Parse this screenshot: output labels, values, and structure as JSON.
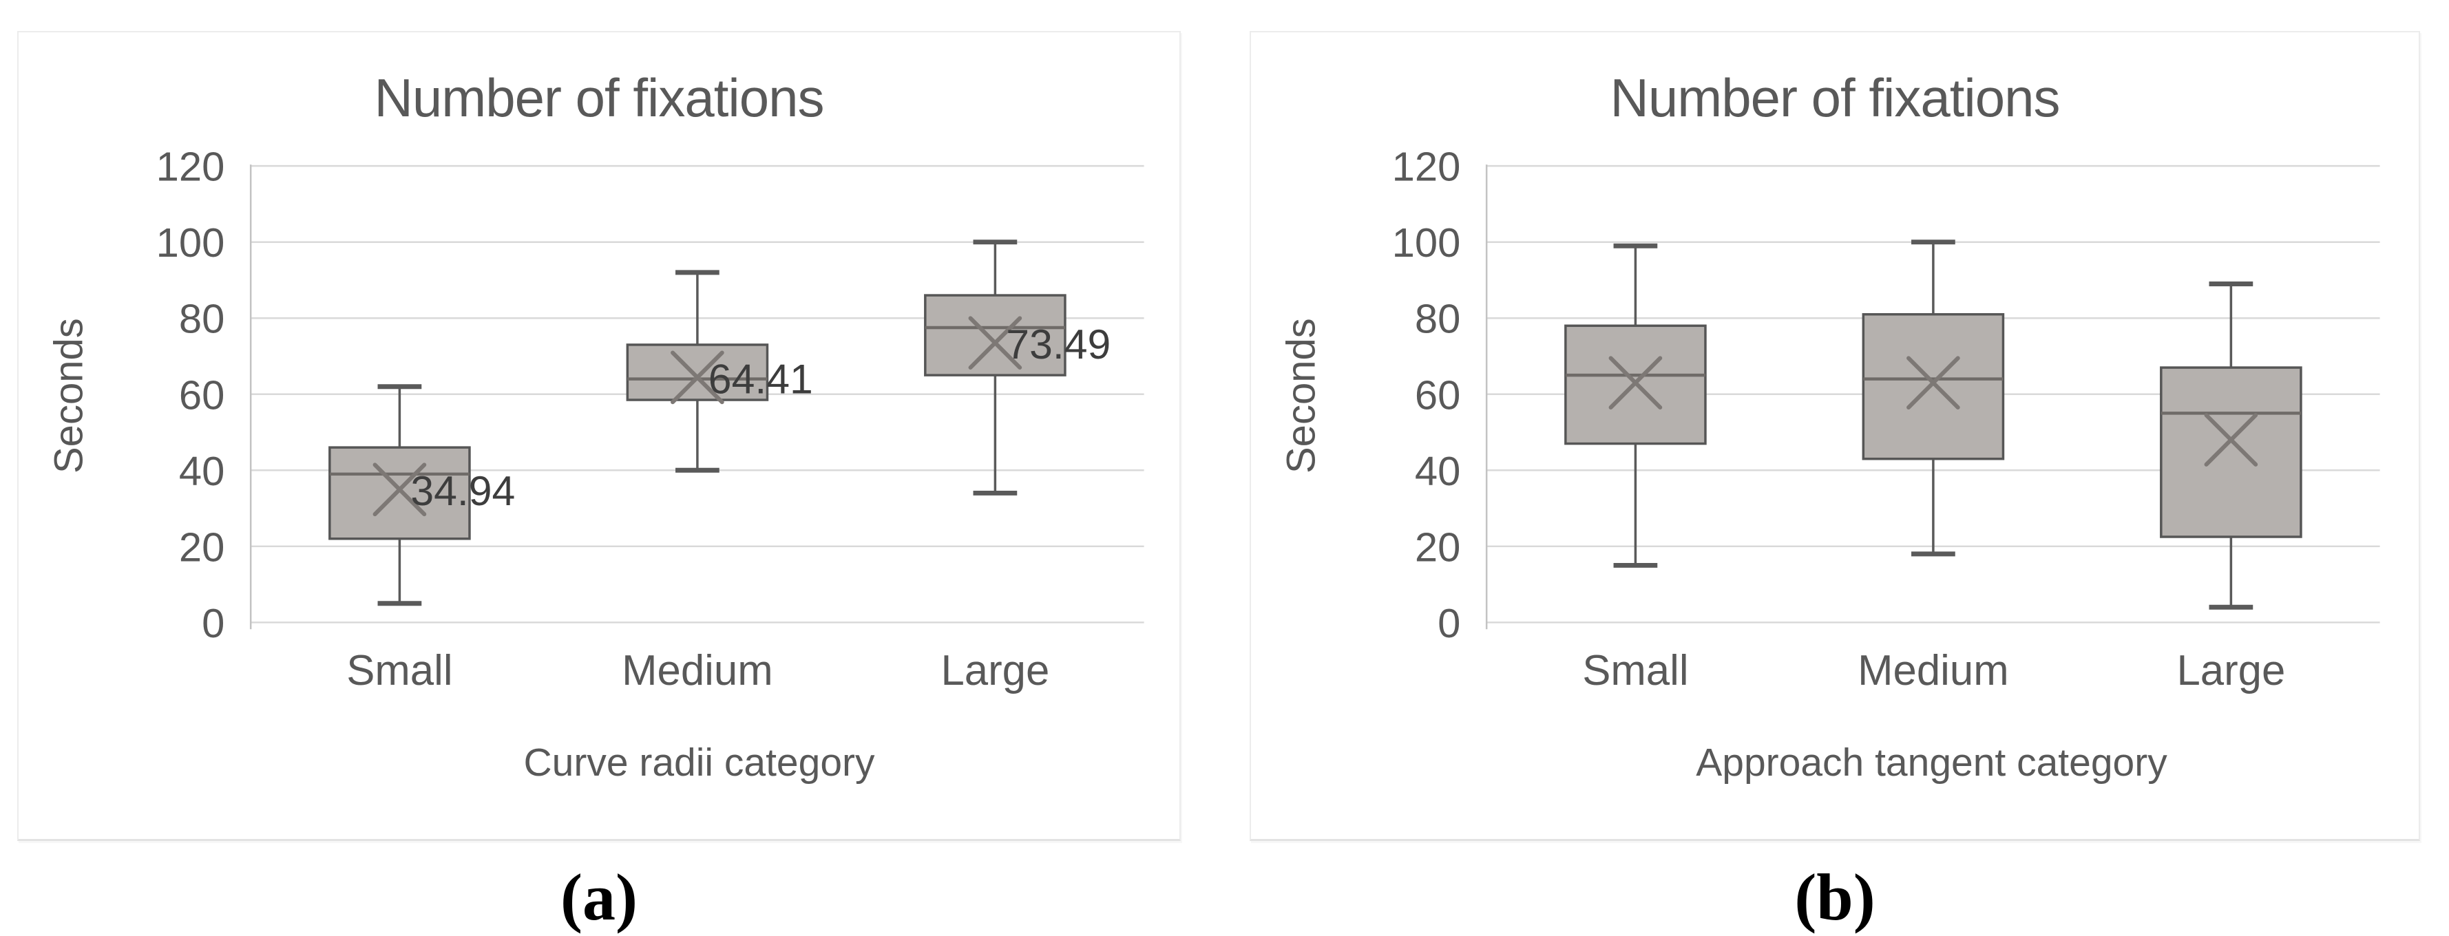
{
  "figure": {
    "background": "#ffffff",
    "captions": {
      "a": "(a)",
      "b": "(b)"
    }
  },
  "colors": {
    "panel_border": "#ececec",
    "gridline": "#d9d9d9",
    "axis_line": "#c3c3c3",
    "tick_text": "#595959",
    "category_text": "#595959",
    "title_text": "#595959",
    "box_fill": "#b5b1ae",
    "box_border": "#565656",
    "median_line": "#6f6b68",
    "whisker": "#5a5a5a",
    "mean_marker": "#7d7875",
    "mean_label_text": "#3d3d3d",
    "caption_text": "#000000"
  },
  "chart_data": [
    {
      "type": "box",
      "title": "Number of fixations",
      "ylabel": "Seconds",
      "xlabel": "Curve radii category",
      "caption": "(a)",
      "categories": [
        "Small",
        "Medium",
        "Large"
      ],
      "ylim": [
        0,
        120
      ],
      "yticks": [
        0,
        20,
        40,
        60,
        80,
        100,
        120
      ],
      "grid": true,
      "legend": "none",
      "boxes": [
        {
          "category": "Small",
          "whisker_low": 5,
          "q1": 22,
          "median": 39,
          "q3": 46,
          "whisker_high": 62,
          "mean": 34.94,
          "mean_label": "34.94"
        },
        {
          "category": "Medium",
          "whisker_low": 40,
          "q1": 58.5,
          "median": 64,
          "q3": 73,
          "whisker_high": 92,
          "mean": 64.41,
          "mean_label": "64.41"
        },
        {
          "category": "Large",
          "whisker_low": 34,
          "q1": 65,
          "median": 77.5,
          "q3": 86,
          "whisker_high": 100,
          "mean": 73.49,
          "mean_label": "73.49"
        }
      ]
    },
    {
      "type": "box",
      "title": "Number of fixations",
      "ylabel": "Seconds",
      "xlabel": "Approach tangent category",
      "caption": "(b)",
      "categories": [
        "Small",
        "Medium",
        "Large"
      ],
      "ylim": [
        0,
        120
      ],
      "yticks": [
        0,
        20,
        40,
        60,
        80,
        100,
        120
      ],
      "grid": true,
      "legend": "none",
      "boxes": [
        {
          "category": "Small",
          "whisker_low": 15,
          "q1": 47,
          "median": 65,
          "q3": 78,
          "whisker_high": 99,
          "mean": 63,
          "mean_label": ""
        },
        {
          "category": "Medium",
          "whisker_low": 18,
          "q1": 43,
          "median": 64,
          "q3": 81,
          "whisker_high": 100,
          "mean": 63,
          "mean_label": ""
        },
        {
          "category": "Large",
          "whisker_low": 4,
          "q1": 22.5,
          "median": 55,
          "q3": 67,
          "whisker_high": 89,
          "mean": 48,
          "mean_label": ""
        }
      ]
    }
  ]
}
